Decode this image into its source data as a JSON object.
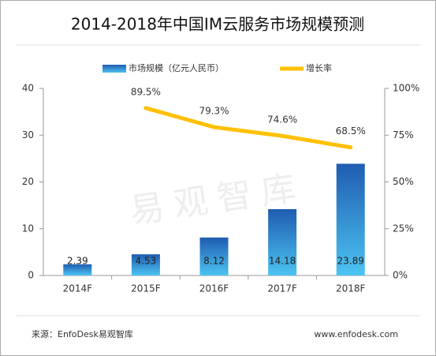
{
  "chart_data": {
    "type": "bar",
    "title": "2014-2018年中国IM云服务市场规模预测",
    "categories": [
      "2014F",
      "2015F",
      "2016F",
      "2017F",
      "2018F"
    ],
    "series": [
      {
        "name": "市场规模（亿元人民币）",
        "type": "bar",
        "color": "#2a7fd0",
        "values": [
          2.39,
          4.53,
          8.12,
          14.18,
          23.89
        ]
      },
      {
        "name": "增长率",
        "type": "line",
        "axis": "y2",
        "color": "#ffc000",
        "values": [
          null,
          89.5,
          79.3,
          74.6,
          68.5
        ],
        "value_labels": [
          null,
          "89.5%",
          "79.3%",
          "74.6%",
          "68.5%"
        ]
      }
    ],
    "ylim": [
      0,
      40
    ],
    "yticks": [
      0,
      10,
      20,
      30,
      40
    ],
    "y2lim": [
      0,
      100
    ],
    "y2ticks": [
      {
        "value": 0,
        "label": "0%"
      },
      {
        "value": 25,
        "label": "25%"
      },
      {
        "value": 50,
        "label": "50%"
      },
      {
        "value": 75,
        "label": "75%"
      },
      {
        "value": 100,
        "label": "100%"
      }
    ],
    "legend": "top",
    "watermark": "易观智库",
    "source": "来源：EnfoDesk易观智库",
    "website": "www.enfodesk.com"
  }
}
